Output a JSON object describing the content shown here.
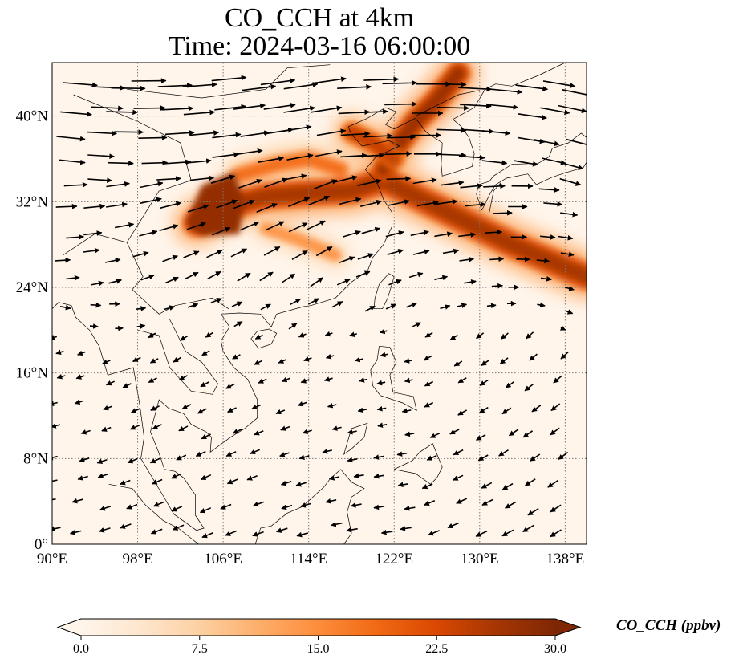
{
  "title": {
    "line1": "CO_CCH at 4km",
    "line2": "Time: 2024-03-16 06:00:00"
  },
  "map": {
    "lon_range": [
      90,
      140
    ],
    "lat_range": [
      0,
      45
    ],
    "lon_ticks": [
      90,
      98,
      106,
      114,
      122,
      130,
      138
    ],
    "lat_ticks": [
      0,
      8,
      16,
      24,
      32,
      40
    ],
    "lon_tick_labels": [
      "90°E",
      "98°E",
      "106°E",
      "114°E",
      "122°E",
      "130°E",
      "138°E"
    ],
    "lat_tick_labels": [
      "0°",
      "8°N",
      "16°N",
      "24°N",
      "32°N",
      "40°N"
    ],
    "grid": "dotted gray",
    "field": "CO concentration at 4 km",
    "vectors": "wind arrows"
  },
  "colorbar": {
    "label": "CO_CCH (ppbv)",
    "range": [
      0,
      30
    ],
    "ticks": [
      0.0,
      7.5,
      15.0,
      22.5,
      30.0
    ],
    "tick_labels": [
      "0.0",
      "7.5",
      "15.0",
      "22.5",
      "30.0"
    ],
    "extend": "both",
    "colormap": [
      "#fff5eb",
      "#fee6ce",
      "#fdd0a2",
      "#fdae6b",
      "#fd8d3c",
      "#f16913",
      "#d94801",
      "#a63603",
      "#7f2704"
    ]
  },
  "chart_data": {
    "type": "heatmap",
    "title": "CO_CCH at 4km\nTime: 2024-03-16 06:00:00",
    "xlabel": "",
    "ylabel": "",
    "xlim": [
      90,
      140
    ],
    "ylim": [
      0,
      45
    ],
    "zlim": [
      0,
      30
    ],
    "zlabel": "CO_CCH (ppbv)",
    "plumes": [
      {
        "name": "",
        "path": [
          [
            103.5,
            30.0
          ],
          [
            106.0,
            31.5
          ],
          [
            110.0,
            32.5
          ],
          [
            114.0,
            32.8
          ],
          [
            118.0,
            33.0
          ],
          [
            121.0,
            34.0
          ],
          [
            124.0,
            32.5
          ],
          [
            128.0,
            30.5
          ],
          [
            133.0,
            28.0
          ],
          [
            140.0,
            25.0
          ]
        ],
        "value": 26
      },
      {
        "name": "",
        "path": [
          [
            121.0,
            35.0
          ],
          [
            122.5,
            37.5
          ],
          [
            124.0,
            39.5
          ],
          [
            126.0,
            41.5
          ],
          [
            128.0,
            44.0
          ]
        ],
        "value": 27
      },
      {
        "name": "",
        "path": [
          [
            118.0,
            38.5
          ],
          [
            120.0,
            37.5
          ],
          [
            122.0,
            36.0
          ]
        ],
        "value": 24
      },
      {
        "name": "",
        "path": [
          [
            107.5,
            34.5
          ],
          [
            111.0,
            35.5
          ],
          [
            114.0,
            36.0
          ],
          [
            117.0,
            35.0
          ]
        ],
        "value": 18
      },
      {
        "name": "",
        "path": [
          [
            110.0,
            29.5
          ],
          [
            113.0,
            28.5
          ],
          [
            116.5,
            27.0
          ]
        ],
        "value": 14
      }
    ]
  }
}
